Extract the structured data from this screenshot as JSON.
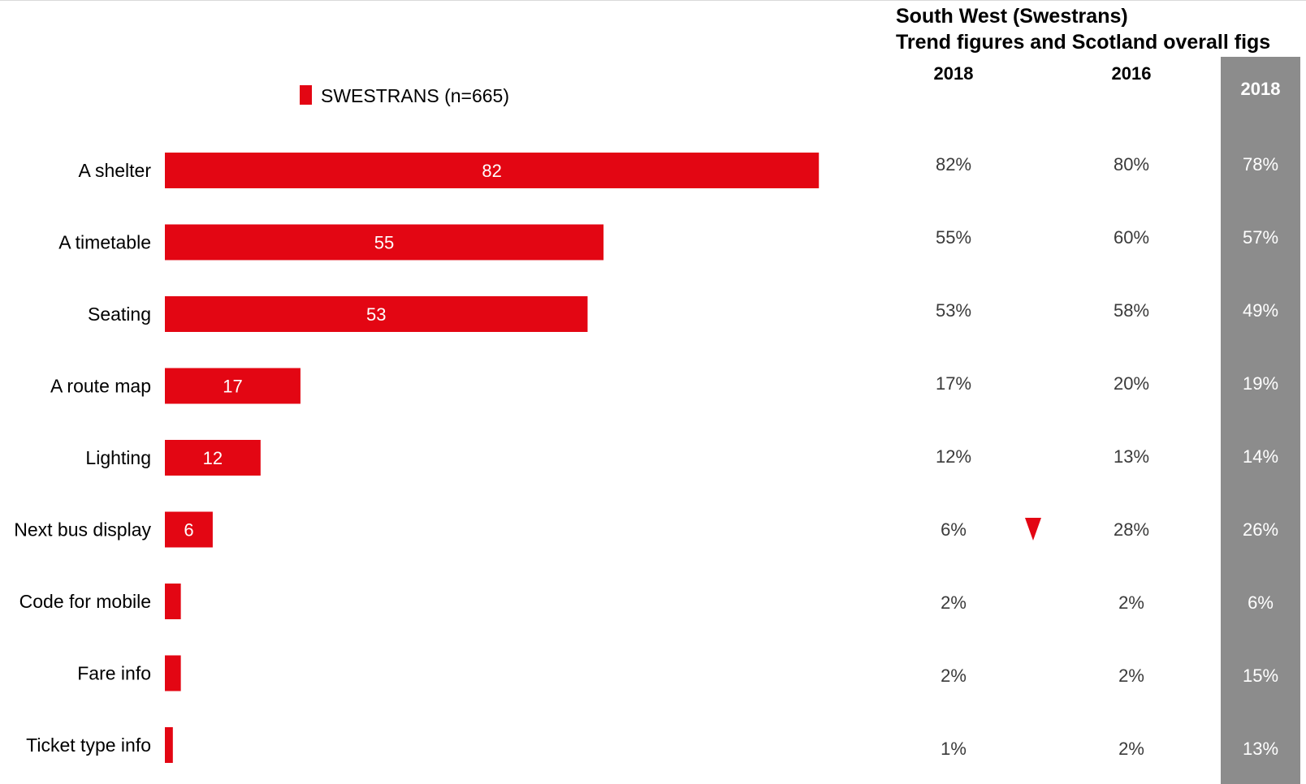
{
  "chart_data": {
    "type": "bar",
    "orientation": "horizontal",
    "legend": {
      "label": "SWESTRANS (n=665)",
      "color": "#e30613",
      "placement": "top-center"
    },
    "categories": [
      "A shelter",
      "A timetable",
      "Seating",
      "A route map",
      "Lighting",
      "Next bus display",
      "Code for mobile",
      "Fare info",
      "Ticket type info"
    ],
    "series": [
      {
        "name": "SWESTRANS (n=665)",
        "color": "#e30613",
        "values": [
          82,
          55,
          53,
          17,
          12,
          6,
          2,
          2,
          1
        ],
        "data_labels": [
          "82",
          "55",
          "53",
          "17",
          "12",
          "6",
          "",
          "",
          ""
        ]
      }
    ],
    "xlim": [
      0,
      100
    ],
    "grid": false
  },
  "table": {
    "title_line1": "South West (Swestrans)",
    "title_line2": "Trend figures and Scotland overall figs",
    "columns": [
      "2018",
      "2016",
      "2018"
    ],
    "rows": [
      {
        "a": "82%",
        "b": "80%",
        "c": "78%",
        "flag": false
      },
      {
        "a": "55%",
        "b": "60%",
        "c": "57%",
        "flag": false
      },
      {
        "a": "53%",
        "b": "58%",
        "c": "49%",
        "flag": false
      },
      {
        "a": "17%",
        "b": "20%",
        "c": "19%",
        "flag": false
      },
      {
        "a": "12%",
        "b": "13%",
        "c": "14%",
        "flag": false
      },
      {
        "a": "6%",
        "b": "28%",
        "c": "26%",
        "flag": true
      },
      {
        "a": "2%",
        "b": "2%",
        "c": "6%",
        "flag": false
      },
      {
        "a": "2%",
        "b": "2%",
        "c": "15%",
        "flag": false
      },
      {
        "a": "1%",
        "b": "2%",
        "c": "13%",
        "flag": false
      }
    ],
    "decrease_marker_color": "#e30613",
    "scotland_column_color": "#8c8c8c"
  }
}
